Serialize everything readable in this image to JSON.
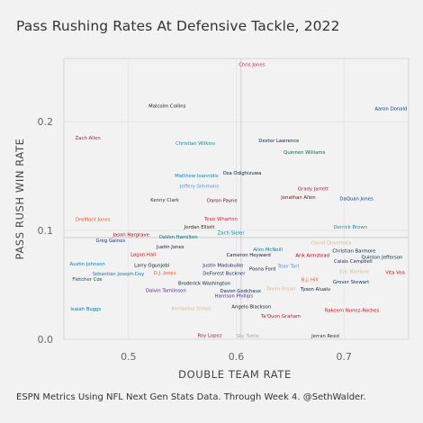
{
  "title": "Pass Rushing Rates At Defensive Tackle, 2022",
  "caption": "ESPN Metrics Using NFL Next Gen Stats Data. Through Week 4. @SethWalder.",
  "colors": {
    "background": "#f2f2f2",
    "panel_border": "#cccccc",
    "grid": "#dedede",
    "mean_line": "#c8c8c8",
    "teams": {
      "BAL": "#241773",
      "LV": "#a5acaf",
      "NE": "#002244",
      "DEN": "#fb4f14",
      "CLE": "#311d00",
      "NO": "#d3bc8d",
      "SF": "#aa0000",
      "TB": "#d50a0a",
      "DAL": "#041e42",
      "PIT": "#101820",
      "LAR": "#003594",
      "CHI": "#0b162a",
      "WAS": "#5a1414",
      "MIA": "#008e97",
      "BUF": "#00338d",
      "CIN": "#fb4f14",
      "HOU": "#03202f",
      "ARI": "#97233f",
      "KC": "#e31837",
      "NYJ": "#125740",
      "ATL": "#a71930",
      "IND": "#002c5f",
      "JAX": "#006778",
      "PHI": "#004c54",
      "GB": "#203731",
      "NYG": "#0b2265",
      "SEA": "#002244",
      "MIN": "#4f2683",
      "LAC": "#0080c6",
      "TEN": "#4b92db",
      "CAR": "#0085ca",
      "DET": "#0076b6"
    }
  },
  "chart_data": {
    "type": "scatter",
    "title": "Pass Rushing Rates At Defensive Tackle, 2022",
    "xlabel": "DOUBLE TEAM RATE",
    "ylabel": "PASS RUSH WIN RATE",
    "xlim": [
      0.44,
      0.76
    ],
    "ylim": [
      0.0,
      0.258
    ],
    "x_ticks": [
      0.5,
      0.6,
      0.7
    ],
    "x_tick_labels": [
      "0.5",
      "0.6",
      "0.7"
    ],
    "y_ticks": [
      0.0,
      0.1,
      0.2
    ],
    "y_tick_labels": [
      "0.0",
      "0.1",
      "0.2"
    ],
    "grid": true,
    "reference_lines": {
      "x_mean": 0.6045,
      "y_mean": 0.0935
    },
    "points": [
      {
        "label": "Chris Jones",
        "x": 0.6145,
        "y": 0.2525,
        "color": "#e31837"
      },
      {
        "label": "Aaron Donald",
        "x": 0.7436,
        "y": 0.2121,
        "color": "#003594"
      },
      {
        "label": "Malcolm Collins",
        "x": 0.5359,
        "y": 0.2146,
        "color": "#101820"
      },
      {
        "label": "Zach Allen",
        "x": 0.4623,
        "y": 0.1849,
        "color": "#97233f"
      },
      {
        "label": "Christian Wilkins",
        "x": 0.562,
        "y": 0.1803,
        "color": "#008e97"
      },
      {
        "label": "Dexter Lawrence",
        "x": 0.6396,
        "y": 0.1824,
        "color": "#0b2265"
      },
      {
        "label": "Quinnen Williams",
        "x": 0.6633,
        "y": 0.1718,
        "color": "#125740"
      },
      {
        "label": "Osa Odighizuwa",
        "x": 0.6054,
        "y": 0.1528,
        "color": "#041e42"
      },
      {
        "label": "Matthew Ioannidis",
        "x": 0.5632,
        "y": 0.1502,
        "color": "#0085ca"
      },
      {
        "label": "Jeffery Simmons",
        "x": 0.5657,
        "y": 0.1408,
        "color": "#4b92db"
      },
      {
        "label": "Grady Jarrett",
        "x": 0.6715,
        "y": 0.1384,
        "color": "#a71930"
      },
      {
        "label": "Kenny Clark",
        "x": 0.5337,
        "y": 0.1282,
        "color": "#203731"
      },
      {
        "label": "Daron Payne",
        "x": 0.5869,
        "y": 0.1274,
        "color": "#5a1414"
      },
      {
        "label": "Jonathan Allen",
        "x": 0.6576,
        "y": 0.1303,
        "color": "#5a1414"
      },
      {
        "label": "DaQuan Jones",
        "x": 0.7116,
        "y": 0.1291,
        "color": "#00338d"
      },
      {
        "label": "DreMont Jones",
        "x": 0.467,
        "y": 0.1102,
        "color": "#fb4f14"
      },
      {
        "label": "Teair Wharton",
        "x": 0.5857,
        "y": 0.1107,
        "color": "#e31837"
      },
      {
        "label": "Derrick Brown",
        "x": 0.706,
        "y": 0.1034,
        "color": "#0085ca"
      },
      {
        "label": "Jordan Elliott",
        "x": 0.5658,
        "y": 0.1031,
        "color": "#311d00"
      },
      {
        "label": "Zach Sieler",
        "x": 0.5951,
        "y": 0.098,
        "color": "#008e97"
      },
      {
        "label": "Jason Hargrave",
        "x": 0.5024,
        "y": 0.0963,
        "color": "#aa0000"
      },
      {
        "label": "DaVon Hamilton",
        "x": 0.5463,
        "y": 0.0939,
        "color": "#006778"
      },
      {
        "label": "Greg Gaines",
        "x": 0.4833,
        "y": 0.091,
        "color": "#003594"
      },
      {
        "label": "David Onyemata",
        "x": 0.6883,
        "y": 0.0888,
        "color": "#d3bc8d"
      },
      {
        "label": "Justin Jones",
        "x": 0.5388,
        "y": 0.0852,
        "color": "#0b162a"
      },
      {
        "label": "Alim McNeill",
        "x": 0.6294,
        "y": 0.0824,
        "color": "#0076b6"
      },
      {
        "label": "Christian Barmore",
        "x": 0.7093,
        "y": 0.0811,
        "color": "#002244"
      },
      {
        "label": "Logan Hall",
        "x": 0.5136,
        "y": 0.078,
        "color": "#d50a0a"
      },
      {
        "label": "Cameron Heyward",
        "x": 0.6114,
        "y": 0.0776,
        "color": "#101820"
      },
      {
        "label": "Arik Armstead",
        "x": 0.6708,
        "y": 0.0772,
        "color": "#aa0000"
      },
      {
        "label": "Quinton Jefferson",
        "x": 0.7353,
        "y": 0.0754,
        "color": "#002244"
      },
      {
        "label": "Calais Campbell",
        "x": 0.7086,
        "y": 0.0716,
        "color": "#241773"
      },
      {
        "label": "Austin Johnson",
        "x": 0.4618,
        "y": 0.0693,
        "color": "#0080c6"
      },
      {
        "label": "Larry Ogunjobi",
        "x": 0.5216,
        "y": 0.0682,
        "color": "#101820"
      },
      {
        "label": "Justin Madubuike",
        "x": 0.5877,
        "y": 0.0681,
        "color": "#241773"
      },
      {
        "label": "Teair Tart",
        "x": 0.6485,
        "y": 0.0673,
        "color": "#4b92db"
      },
      {
        "label": "Poona Ford",
        "x": 0.6243,
        "y": 0.0647,
        "color": "#002244"
      },
      {
        "label": "Eric Barriere",
        "x": 0.7095,
        "y": 0.0622,
        "color": "#d3bc8d"
      },
      {
        "label": "Vita Vea",
        "x": 0.7475,
        "y": 0.0614,
        "color": "#d50a0a"
      },
      {
        "label": "Sebastian Joseph-Day",
        "x": 0.4905,
        "y": 0.0603,
        "color": "#0080c6"
      },
      {
        "label": "D.J. Jones",
        "x": 0.5337,
        "y": 0.0609,
        "color": "#fb4f14"
      },
      {
        "label": "DeForest Buckner",
        "x": 0.5886,
        "y": 0.0608,
        "color": "#002c5f"
      },
      {
        "label": "Fletcher Cox",
        "x": 0.4617,
        "y": 0.0553,
        "color": "#004c54"
      },
      {
        "label": "B.J. Hill",
        "x": 0.6682,
        "y": 0.055,
        "color": "#fb4f14"
      },
      {
        "label": "Grover Stewart",
        "x": 0.7066,
        "y": 0.0529,
        "color": "#002c5f"
      },
      {
        "label": "Broderick Washington",
        "x": 0.5703,
        "y": 0.0514,
        "color": "#03202f"
      },
      {
        "label": "Taven Bryan",
        "x": 0.6414,
        "y": 0.0465,
        "color": "#d3bc8d"
      },
      {
        "label": "Tyson Alualu",
        "x": 0.6735,
        "y": 0.0461,
        "color": "#101820"
      },
      {
        "label": "Dalvin Tomlinson",
        "x": 0.5347,
        "y": 0.0447,
        "color": "#4f2683"
      },
      {
        "label": "Davon Godchaux",
        "x": 0.604,
        "y": 0.0445,
        "color": "#002244"
      },
      {
        "label": "Harrison Phillips",
        "x": 0.5978,
        "y": 0.04,
        "color": "#4f2683"
      },
      {
        "label": "Angelo Blackson",
        "x": 0.614,
        "y": 0.03,
        "color": "#0b162a"
      },
      {
        "label": "Isaiah Buggs",
        "x": 0.4603,
        "y": 0.0278,
        "color": "#0076b6"
      },
      {
        "label": "Kentavius Street",
        "x": 0.5581,
        "y": 0.0285,
        "color": "#d3bc8d"
      },
      {
        "label": "Rakeem Nunez-Roches",
        "x": 0.7074,
        "y": 0.0268,
        "color": "#d50a0a"
      },
      {
        "label": "Ta'Quon Graham",
        "x": 0.6414,
        "y": 0.0215,
        "color": "#a71930"
      },
      {
        "label": "Roy Lopez",
        "x": 0.5754,
        "y": 0.0036,
        "color": "#97233f"
      },
      {
        "label": "Sky Tuttle",
        "x": 0.6106,
        "y": 0.0032,
        "color": "#a5acaf"
      },
      {
        "label": "Jerran Reed",
        "x": 0.6827,
        "y": 0.0031,
        "color": "#203731"
      }
    ]
  }
}
